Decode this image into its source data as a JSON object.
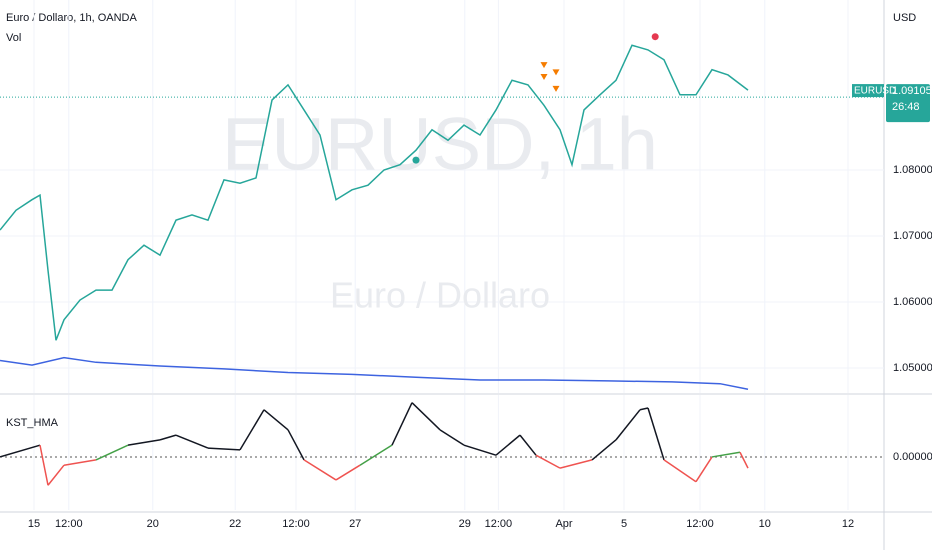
{
  "chart_data": {
    "type": "line",
    "title": "Euro / Dollaro, 1h, OANDA",
    "subtitle": "Vol",
    "watermark": "EURUSD, 1h",
    "watermark_sub": "Euro / Dollaro",
    "currency": "USD",
    "symbol_label": "EURUSD",
    "last_price": {
      "value": 1.09105,
      "label": "1.09105"
    },
    "countdown": "26:48",
    "x": [
      0,
      2,
      4,
      5,
      6,
      7,
      8,
      10,
      12,
      14,
      16,
      18,
      20,
      22,
      24,
      26,
      28,
      30,
      32,
      34,
      36,
      38,
      40,
      42,
      44,
      46,
      48,
      50,
      52,
      54,
      56,
      58,
      60,
      62,
      64,
      66,
      68,
      70,
      71.5,
      73,
      75,
      77,
      79,
      81,
      83,
      85,
      87,
      89,
      91,
      93.5
    ],
    "series": [
      {
        "name": "EURUSD",
        "color": "#26a69a",
        "values": [
          1.0709,
          1.0739,
          1.0755,
          1.0762,
          1.0648,
          1.0542,
          1.0573,
          1.0603,
          1.0618,
          1.0618,
          1.0664,
          1.0686,
          1.0671,
          1.0724,
          1.0732,
          1.0724,
          1.0785,
          1.078,
          1.0788,
          1.0906,
          1.0929,
          1.0891,
          1.0853,
          1.0755,
          1.077,
          1.0777,
          1.08,
          1.0808,
          1.083,
          1.0861,
          1.0845,
          1.0868,
          1.0853,
          1.0891,
          1.0936,
          1.0929,
          1.0898,
          1.0861,
          1.0808,
          1.0891,
          1.0914,
          1.0936,
          1.0989,
          1.0982,
          1.0967,
          1.0914,
          1.0914,
          1.0952,
          1.0944,
          1.0921
        ]
      }
    ],
    "xlim": [
      0,
      110.5
    ],
    "xticks": [
      {
        "value": 4.25,
        "label": "15"
      },
      {
        "value": 8.6,
        "label": "12:00"
      },
      {
        "value": 19.1,
        "label": "20"
      },
      {
        "value": 29.4,
        "label": "22"
      },
      {
        "value": 37,
        "label": "12:00"
      },
      {
        "value": 44.4,
        "label": "27"
      },
      {
        "value": 58.1,
        "label": "29"
      },
      {
        "value": 62.3,
        "label": "12:00"
      },
      {
        "value": 70.5,
        "label": "Apr"
      },
      {
        "value": 78,
        "label": "5"
      },
      {
        "value": 87.5,
        "label": "12:00"
      },
      {
        "value": 95.6,
        "label": "10"
      },
      {
        "value": 106,
        "label": "12"
      }
    ],
    "ylim": [
      1.04621,
      1.10576
    ],
    "yticks": [
      {
        "value": 1.05,
        "label": "1.05000"
      },
      {
        "value": 1.06,
        "label": "1.06000"
      },
      {
        "value": 1.07,
        "label": "1.07000"
      },
      {
        "value": 1.08,
        "label": "1.08000"
      }
    ],
    "grid": true,
    "signals": [
      {
        "x": 52,
        "y": 1.0815,
        "kind": "circle",
        "color": "#26a69a"
      },
      {
        "x": 81.9,
        "y": 1.1002,
        "kind": "circle",
        "color": "#e53950"
      },
      {
        "x": 68,
        "y": 1.0959,
        "kind": "triangle",
        "color": "#f57c00"
      },
      {
        "x": 68,
        "y": 1.0941,
        "kind": "triangle",
        "color": "#f57c00"
      },
      {
        "x": 69.5,
        "y": 1.0948,
        "kind": "triangle",
        "color": "#f57c00"
      },
      {
        "x": 69.5,
        "y": 1.0923,
        "kind": "triangle",
        "color": "#f57c00"
      }
    ],
    "volume_ma": {
      "color": "#3d63e0",
      "ylim": [
        0,
        100
      ],
      "x": [
        0,
        4,
        8,
        12,
        20,
        28,
        36,
        44,
        52,
        60,
        68,
        76,
        84,
        90,
        93.5
      ],
      "values": [
        35,
        30,
        38,
        33,
        29,
        26,
        22,
        20,
        17,
        14,
        14,
        13,
        12,
        10,
        4
      ]
    },
    "kst": {
      "title": "KST_HMA",
      "ylim": [
        -0.9,
        1.0
      ],
      "yticks": [
        {
          "value": 0,
          "label": "0.00000"
        }
      ],
      "colors": {
        "up": "#131722",
        "near": "#43a047",
        "down": "#ef5350"
      },
      "x": [
        0,
        5,
        6,
        8,
        12,
        16,
        20,
        22,
        26,
        30,
        33,
        36,
        38,
        42,
        45,
        49,
        51.5,
        55,
        58,
        62,
        65,
        67,
        70,
        74,
        77,
        80,
        81,
        83,
        87,
        89,
        92.5,
        93.5
      ],
      "values": [
        0,
        0.2,
        -0.48,
        -0.14,
        -0.05,
        0.2,
        0.29,
        0.37,
        0.15,
        0.12,
        0.8,
        0.46,
        -0.05,
        -0.39,
        -0.14,
        0.2,
        0.92,
        0.46,
        0.2,
        0.03,
        0.37,
        0.03,
        -0.19,
        -0.05,
        0.29,
        0.8,
        0.83,
        -0.05,
        -0.42,
        0,
        0.08,
        -0.19
      ]
    }
  }
}
